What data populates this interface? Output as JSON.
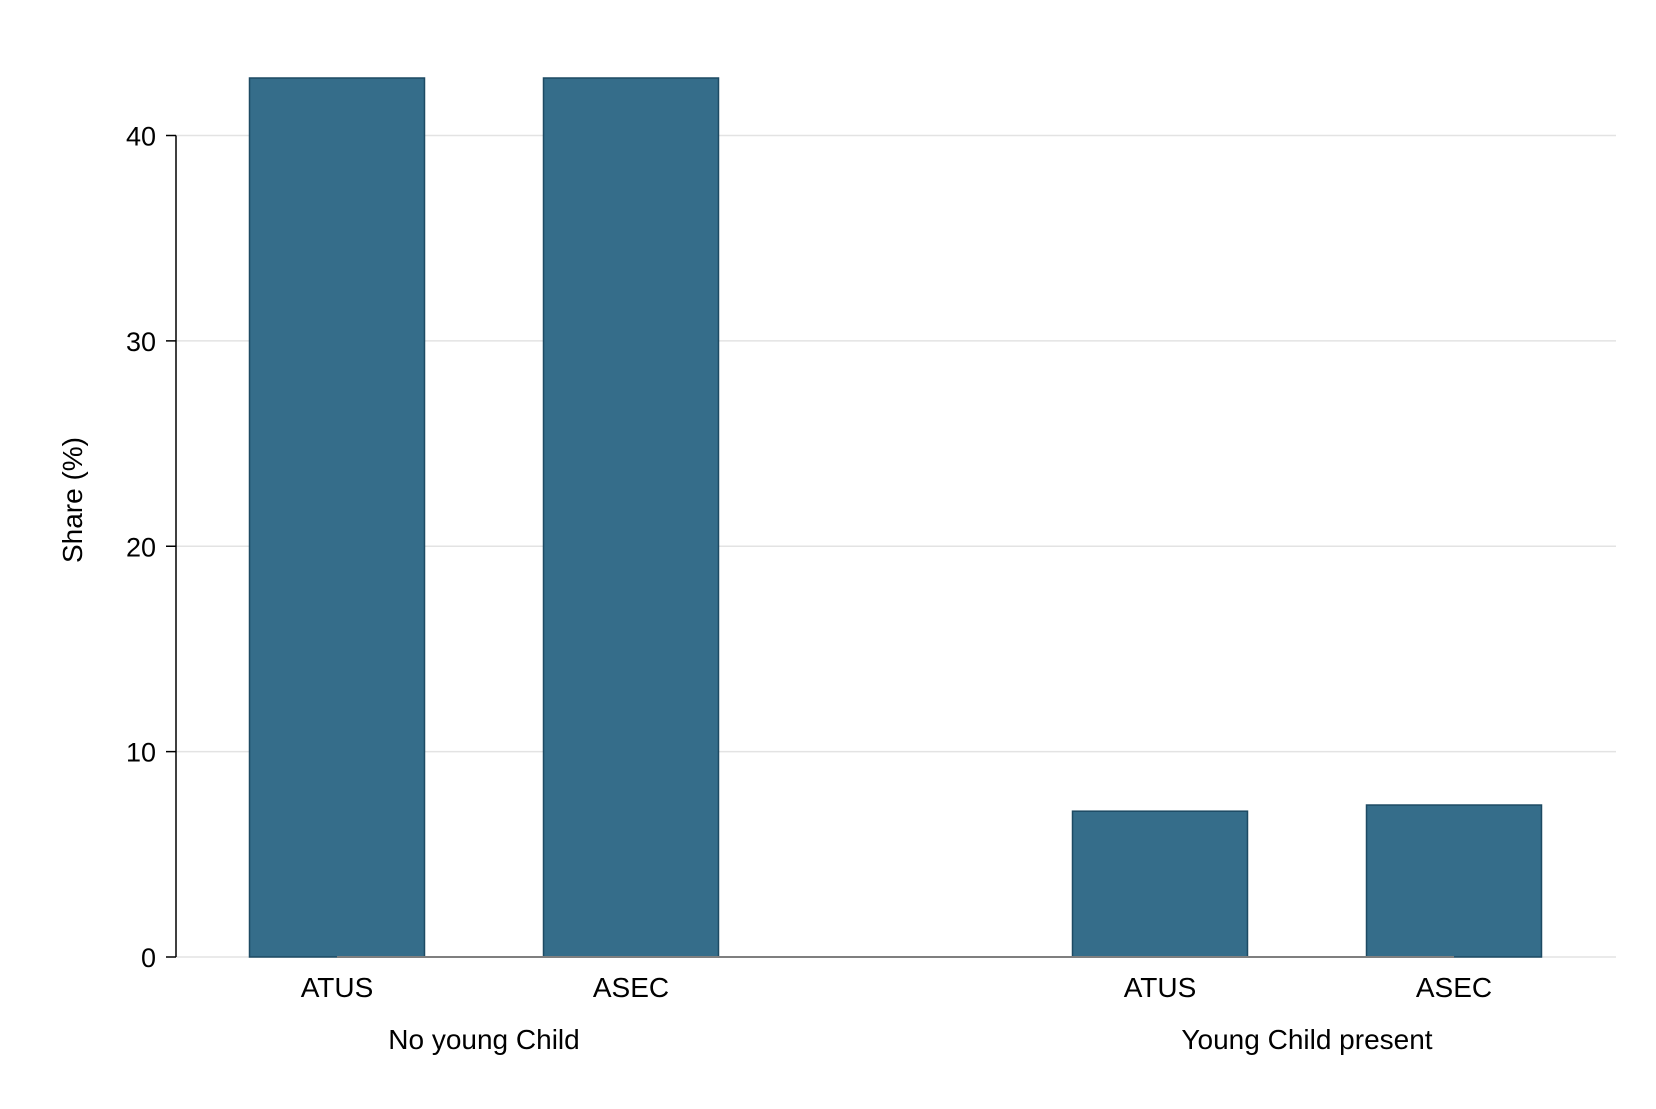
{
  "chart_data": {
    "type": "bar",
    "ylabel": "Share (%)",
    "ylim": [
      0,
      42.8
    ],
    "yticks": [
      0,
      10,
      20,
      30,
      40
    ],
    "grid": true,
    "bar_color": "#356d8a",
    "bar_edge_color": "#1d4a63",
    "groups": [
      {
        "label": "No young Child",
        "categories": [
          "ATUS",
          "ASEC"
        ],
        "values": [
          42.8,
          42.8
        ]
      },
      {
        "label": "Young Child present",
        "categories": [
          "ATUS",
          "ASEC"
        ],
        "values": [
          7.1,
          7.4
        ]
      }
    ]
  }
}
